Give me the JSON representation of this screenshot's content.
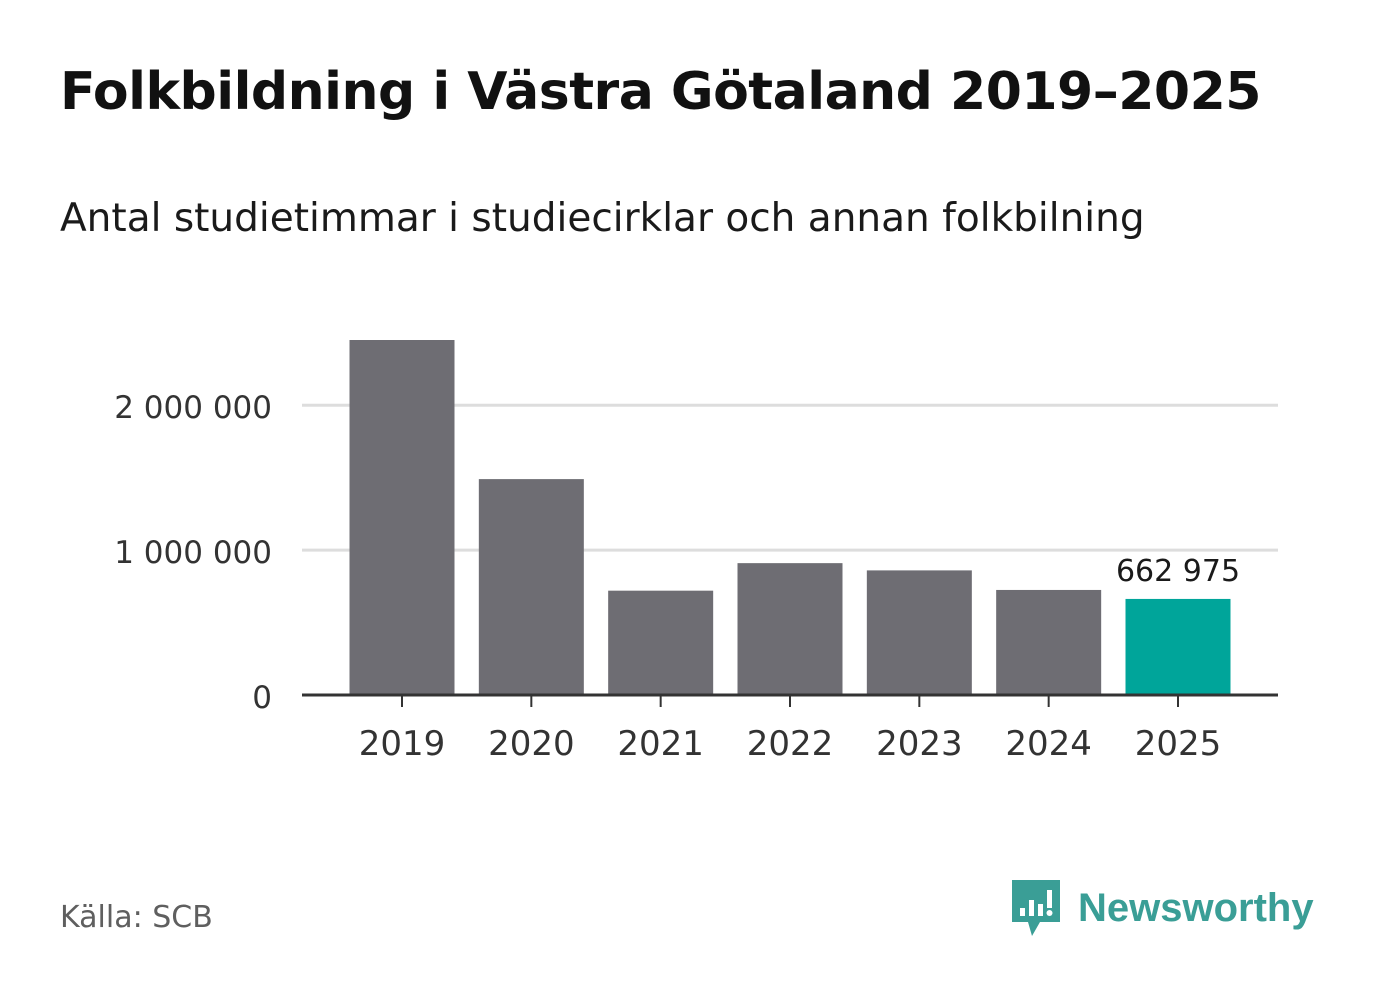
{
  "chart_data": {
    "type": "bar",
    "title": "Folkbildning i Västra Götaland 2019–2025",
    "subtitle": "Antal studietimmar i studiecirklar och annan folkbilning",
    "categories": [
      "2019",
      "2020",
      "2021",
      "2022",
      "2023",
      "2024",
      "2025"
    ],
    "values": [
      2450000,
      1490000,
      720000,
      910000,
      860000,
      725000,
      662975
    ],
    "ylim": [
      0,
      2450000
    ],
    "yticks": [
      0,
      1000000,
      2000000
    ],
    "ytick_labels": [
      "0",
      "1 000 000",
      "2 000 000"
    ],
    "grid": true,
    "xlabel": "",
    "ylabel": "",
    "highlight_index": 6,
    "highlight_label": "662 975",
    "colors": {
      "bar": "#6e6d73",
      "highlight": "#00a59a",
      "grid": "#dddddd",
      "axis": "#333333"
    }
  },
  "footer": {
    "source": "Källa: SCB",
    "brand": "Newsworthy",
    "brand_color": "#3a9e96",
    "brand_icon": "newsworthy-logo-icon"
  }
}
